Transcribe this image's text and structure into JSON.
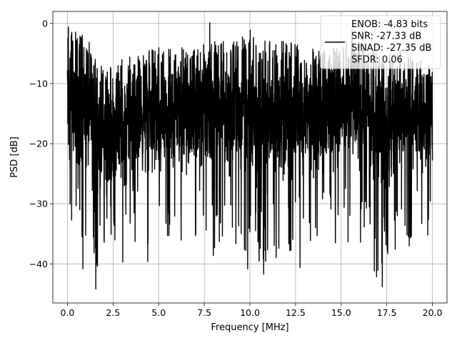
{
  "chart_data": {
    "type": "line",
    "title": "",
    "xlabel": "Frequency [MHz]",
    "ylabel": "PSD [dB]",
    "xlim": [
      -0.8,
      20.8
    ],
    "ylim": [
      -46.5,
      2.0
    ],
    "xticks": [
      0.0,
      2.5,
      5.0,
      7.5,
      10.0,
      12.5,
      15.0,
      17.5,
      20.0
    ],
    "xtick_labels": [
      "0.0",
      "2.5",
      "5.0",
      "7.5",
      "10.0",
      "12.5",
      "15.0",
      "17.5",
      "20.0"
    ],
    "yticks": [
      0,
      -10,
      -20,
      -30,
      -40
    ],
    "ytick_labels": [
      "0",
      "−10",
      "−20",
      "−30",
      "−40"
    ],
    "grid": true,
    "legend_position": "top-right",
    "line_color": "#000000",
    "legend_entries": [
      "ENOB: -4.83 bits",
      "SNR: -27.33 dB",
      "SINAD: -27.35 dB",
      "SFDR: 0.06"
    ],
    "series": [
      {
        "x_range": [
          0.0,
          20.0
        ],
        "envelope_max": [
          -1,
          -2,
          -8,
          -6,
          -5,
          -4,
          -4,
          -4,
          -3,
          -3,
          -1,
          -3,
          -3,
          -4,
          -4,
          -3,
          -3,
          -5,
          -4,
          -6,
          -6
        ],
        "envelope_min": [
          -35,
          -39,
          -42,
          -40,
          -36,
          -39,
          -37,
          -38,
          -39,
          -36,
          -42,
          -40,
          -40,
          -38,
          -36,
          -37,
          -36,
          -44,
          -38,
          -37,
          -36
        ],
        "peaks": [
          {
            "x": 0.05,
            "y": -0.6
          },
          {
            "x": 1.55,
            "y": -44.2
          },
          {
            "x": 1.65,
            "y": -40.4
          },
          {
            "x": 0.85,
            "y": -40.8
          },
          {
            "x": 4.4,
            "y": -39.6
          },
          {
            "x": 10.75,
            "y": -41.7
          },
          {
            "x": 12.75,
            "y": -40.6
          },
          {
            "x": 17.25,
            "y": -43.8
          },
          {
            "x": 17.55,
            "y": -38.3
          },
          {
            "x": 7.8,
            "y": 0.1
          },
          {
            "x": 15.6,
            "y": -1.0
          }
        ]
      }
    ]
  }
}
